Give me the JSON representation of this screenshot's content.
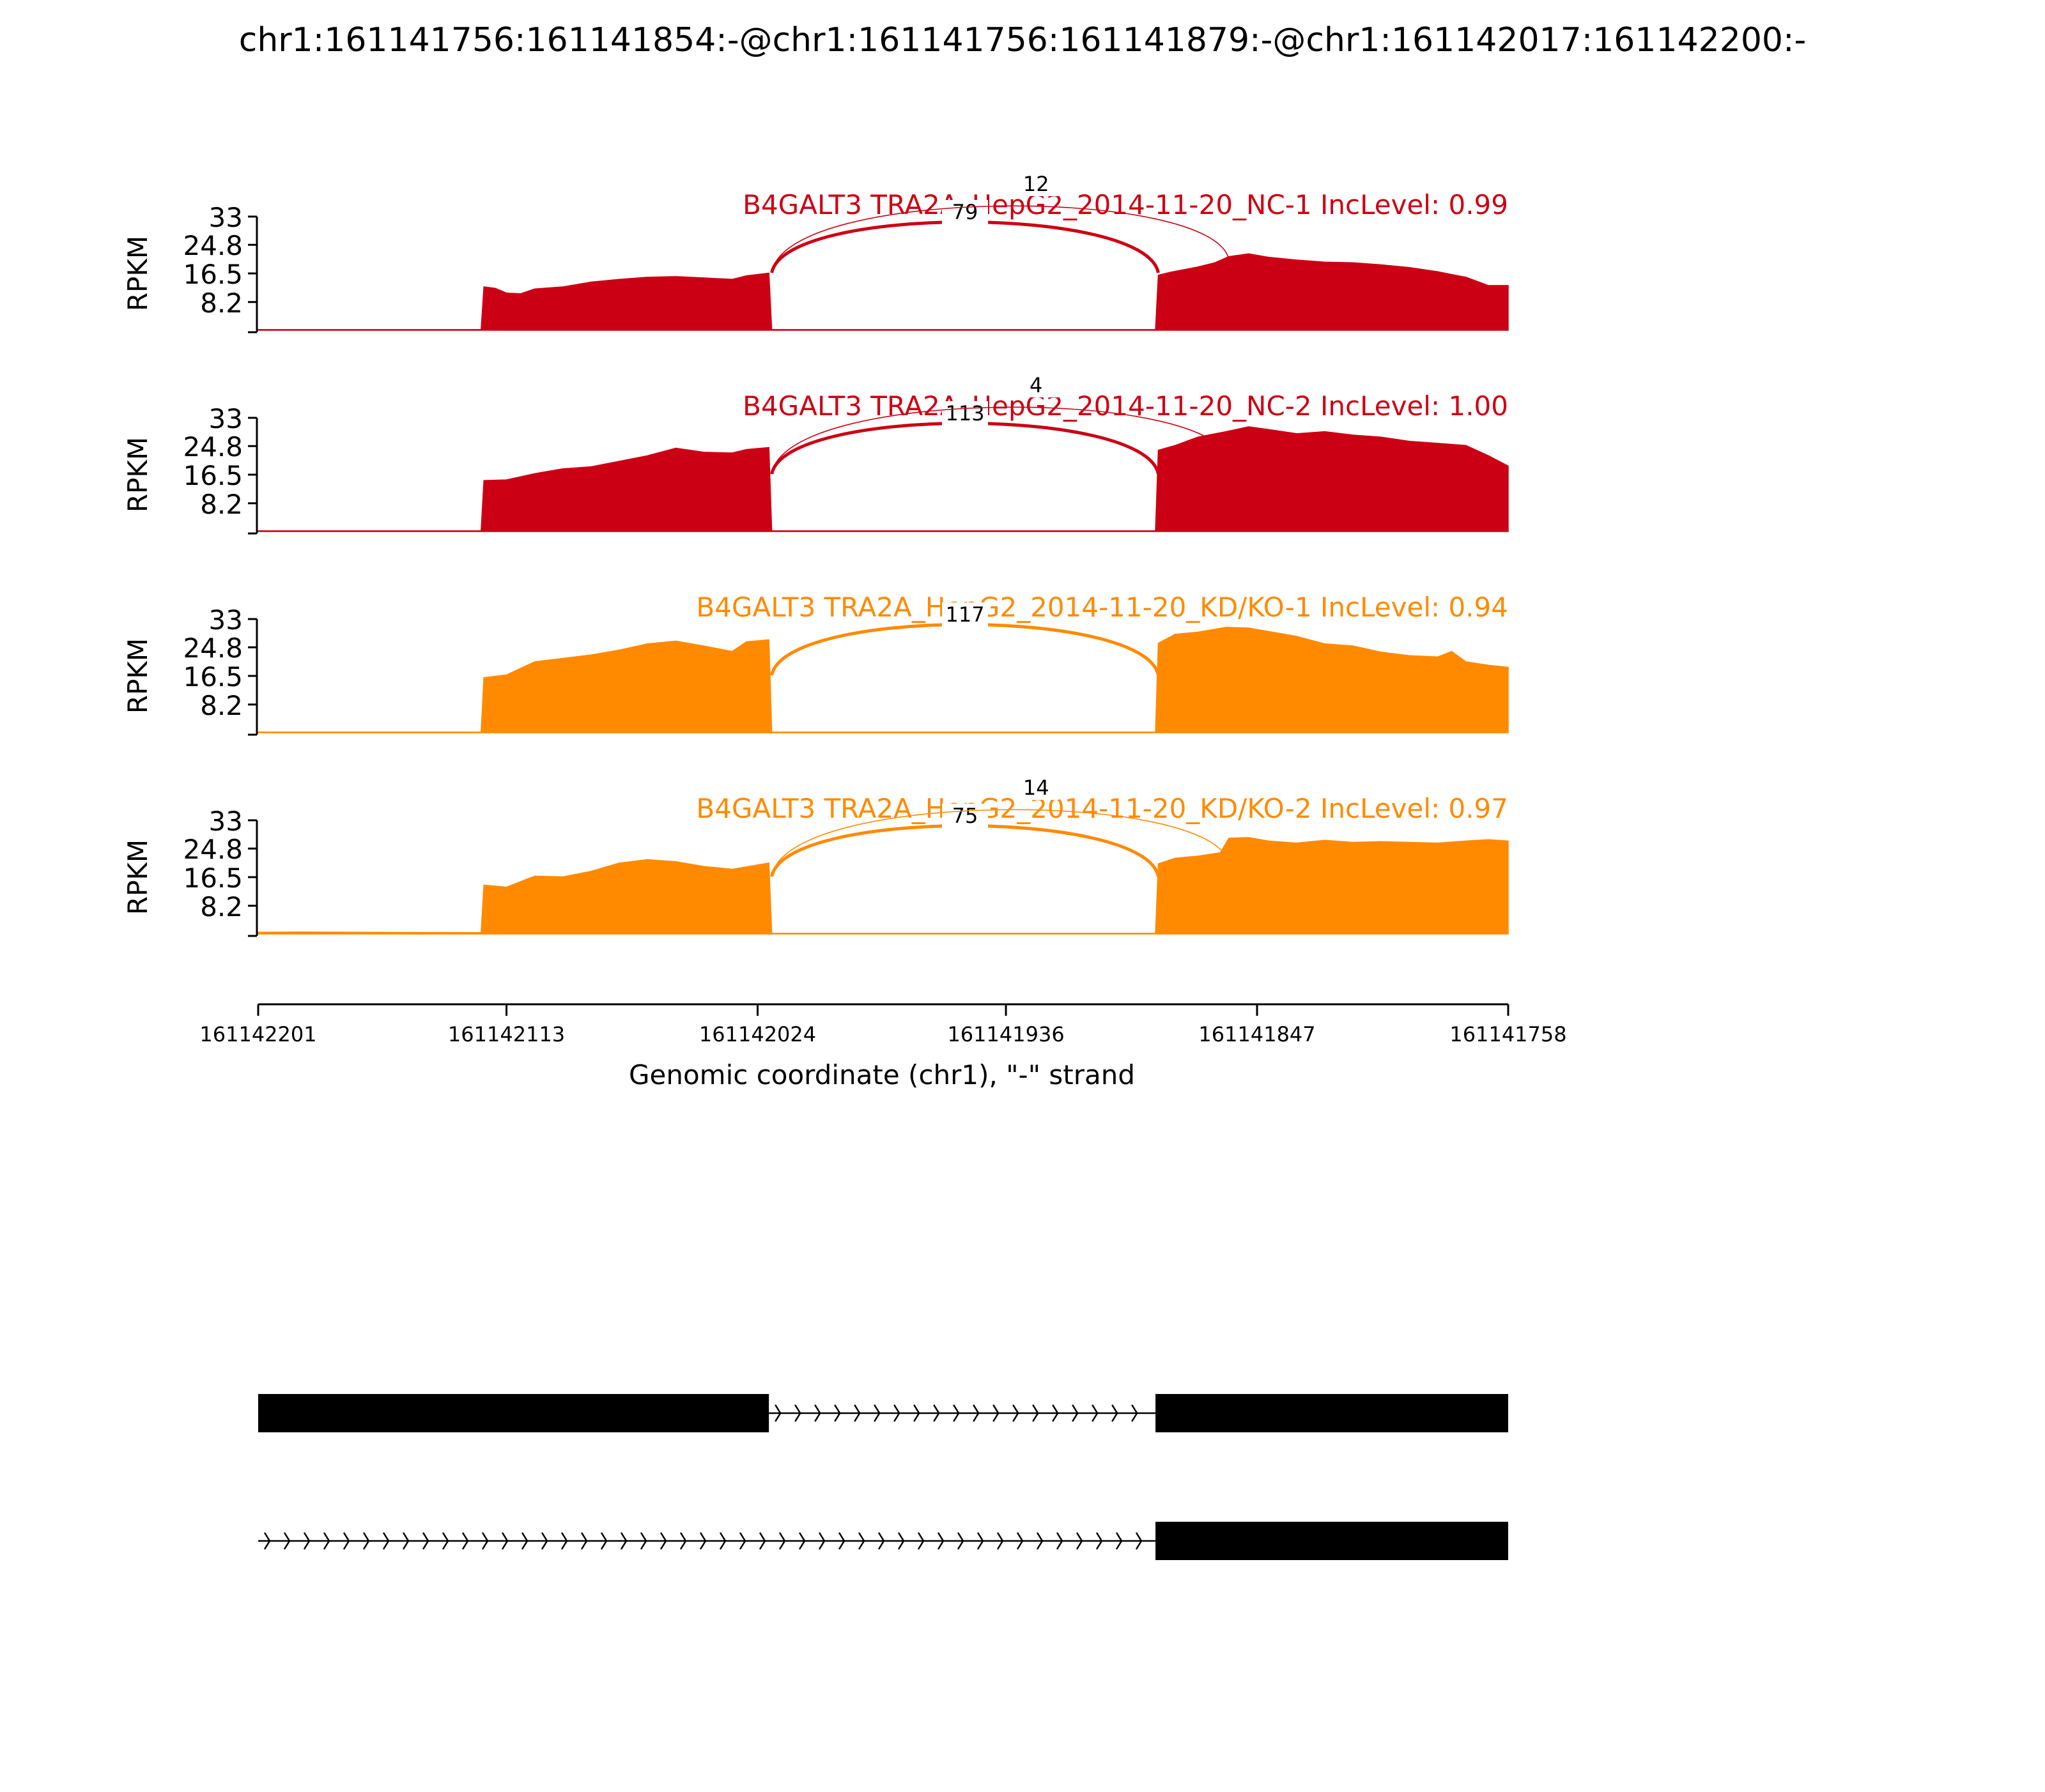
{
  "chart_data": {
    "type": "area",
    "title": "chr1:161141756:161141854:-@chr1:161141756:161141879:-@chr1:161142017:161142200:-",
    "xlabel": "Genomic coordinate (chr1), \"-\" strand",
    "ylabel": "RPKM",
    "x_range": [
      161142201,
      161141758
    ],
    "x_ticks": [
      "161142201",
      "161142113",
      "161142024",
      "161141936",
      "161141847",
      "161141758"
    ],
    "y_ticks": [
      "33",
      "24.8",
      "16.5",
      "8.2"
    ],
    "ylim": [
      0,
      33
    ],
    "colors": {
      "NC": "#cc0014",
      "KD": "#ff8a00",
      "exon": "#000000"
    },
    "tracks": [
      {
        "name": "B4GALT3 TRA2A_HepG2_2014-11-20_NC-1 IncLevel: 0.99",
        "color": "#cc0014",
        "coverage": [
          [
            161142201,
            0.2
          ],
          [
            161142122,
            0.2
          ],
          [
            161142121,
            12.6
          ],
          [
            161142117,
            12.2
          ],
          [
            161142113,
            10.8
          ],
          [
            161142108,
            10.6
          ],
          [
            161142103,
            12.0
          ],
          [
            161142093,
            12.6
          ],
          [
            161142083,
            14.0
          ],
          [
            161142073,
            14.8
          ],
          [
            161142063,
            15.4
          ],
          [
            161142053,
            15.6
          ],
          [
            161142043,
            15.2
          ],
          [
            161142033,
            14.8
          ],
          [
            161142028,
            15.8
          ],
          [
            161142020,
            16.6
          ],
          [
            161142019,
            0.2
          ],
          [
            161141883,
            0.2
          ],
          [
            161141882,
            16.0
          ],
          [
            161141878,
            16.8
          ],
          [
            161141868,
            18.4
          ],
          [
            161141862,
            19.6
          ],
          [
            161141857,
            21.4
          ],
          [
            161141850,
            22.2
          ],
          [
            161141843,
            21.2
          ],
          [
            161141833,
            20.4
          ],
          [
            161141823,
            19.8
          ],
          [
            161141813,
            19.6
          ],
          [
            161141803,
            19.0
          ],
          [
            161141793,
            18.2
          ],
          [
            161141783,
            17.0
          ],
          [
            161141773,
            15.4
          ],
          [
            161141765,
            13.0
          ],
          [
            161141758,
            13.0
          ]
        ],
        "junctions": [
          {
            "label": "79",
            "start": 161142019,
            "end": 161141882
          },
          {
            "label": "12",
            "start": 161142019,
            "end": 161141857
          }
        ]
      },
      {
        "name": "B4GALT3 TRA2A_HepG2_2014-11-20_NC-2 IncLevel: 1.00",
        "color": "#cc0014",
        "coverage": [
          [
            161142201,
            0.2
          ],
          [
            161142122,
            0.2
          ],
          [
            161142121,
            14.8
          ],
          [
            161142113,
            15.0
          ],
          [
            161142103,
            16.8
          ],
          [
            161142093,
            18.2
          ],
          [
            161142083,
            18.8
          ],
          [
            161142073,
            20.4
          ],
          [
            161142063,
            22.0
          ],
          [
            161142053,
            24.2
          ],
          [
            161142043,
            23.0
          ],
          [
            161142033,
            22.8
          ],
          [
            161142028,
            23.8
          ],
          [
            161142020,
            24.4
          ],
          [
            161142019,
            0.2
          ],
          [
            161141883,
            0.2
          ],
          [
            161141882,
            23.6
          ],
          [
            161141876,
            25.0
          ],
          [
            161141868,
            27.4
          ],
          [
            161141858,
            29.0
          ],
          [
            161141850,
            30.4
          ],
          [
            161141843,
            29.6
          ],
          [
            161141833,
            28.4
          ],
          [
            161141823,
            29.0
          ],
          [
            161141813,
            28.0
          ],
          [
            161141803,
            27.4
          ],
          [
            161141793,
            26.2
          ],
          [
            161141783,
            25.6
          ],
          [
            161141773,
            25.0
          ],
          [
            161141765,
            22.0
          ],
          [
            161141758,
            19.0
          ]
        ],
        "junctions": [
          {
            "label": "113",
            "start": 161142019,
            "end": 161141882
          },
          {
            "label": "4",
            "start": 161142019,
            "end": 161141857
          }
        ]
      },
      {
        "name": "B4GALT3 TRA2A_HepG2_2014-11-20_KD/KO-1 IncLevel: 0.94",
        "color": "#ff8a00",
        "coverage": [
          [
            161142201,
            0.2
          ],
          [
            161142122,
            0.2
          ],
          [
            161142121,
            16.0
          ],
          [
            161142113,
            16.8
          ],
          [
            161142103,
            20.6
          ],
          [
            161142093,
            21.6
          ],
          [
            161142083,
            22.6
          ],
          [
            161142073,
            24.0
          ],
          [
            161142063,
            25.8
          ],
          [
            161142053,
            26.6
          ],
          [
            161142043,
            25.2
          ],
          [
            161142033,
            23.6
          ],
          [
            161142028,
            26.4
          ],
          [
            161142020,
            27.0
          ],
          [
            161142019,
            0.2
          ],
          [
            161141883,
            0.2
          ],
          [
            161141882,
            26.0
          ],
          [
            161141876,
            28.6
          ],
          [
            161141868,
            29.2
          ],
          [
            161141858,
            30.6
          ],
          [
            161141850,
            30.4
          ],
          [
            161141843,
            29.4
          ],
          [
            161141833,
            28.0
          ],
          [
            161141823,
            25.8
          ],
          [
            161141813,
            25.2
          ],
          [
            161141803,
            23.4
          ],
          [
            161141793,
            22.4
          ],
          [
            161141783,
            22.0
          ],
          [
            161141778,
            23.6
          ],
          [
            161141773,
            20.6
          ],
          [
            161141765,
            19.6
          ],
          [
            161141758,
            19.0
          ]
        ],
        "junctions": [
          {
            "label": "117",
            "start": 161142019,
            "end": 161141882
          }
        ]
      },
      {
        "name": "B4GALT3 TRA2A_HepG2_2014-11-20_KD/KO-2 IncLevel: 0.97",
        "color": "#ff8a00",
        "coverage": [
          [
            161142201,
            0.5
          ],
          [
            161142185,
            0.6
          ],
          [
            161142165,
            0.5
          ],
          [
            161142122,
            0.4
          ],
          [
            161142121,
            14.2
          ],
          [
            161142113,
            13.6
          ],
          [
            161142103,
            16.8
          ],
          [
            161142093,
            16.6
          ],
          [
            161142083,
            18.2
          ],
          [
            161142073,
            20.6
          ],
          [
            161142063,
            21.6
          ],
          [
            161142053,
            21.0
          ],
          [
            161142043,
            19.6
          ],
          [
            161142033,
            18.8
          ],
          [
            161142020,
            20.6
          ],
          [
            161142019,
            0.2
          ],
          [
            161141883,
            0.2
          ],
          [
            161141882,
            20.4
          ],
          [
            161141876,
            22.0
          ],
          [
            161141868,
            22.6
          ],
          [
            161141860,
            23.6
          ],
          [
            161141857,
            27.8
          ],
          [
            161141850,
            28.0
          ],
          [
            161141843,
            27.0
          ],
          [
            161141833,
            26.4
          ],
          [
            161141823,
            27.2
          ],
          [
            161141813,
            26.6
          ],
          [
            161141803,
            26.8
          ],
          [
            161141793,
            26.6
          ],
          [
            161141783,
            26.4
          ],
          [
            161141773,
            27.0
          ],
          [
            161141765,
            27.4
          ],
          [
            161141758,
            27.0
          ]
        ],
        "junctions": [
          {
            "label": "75",
            "start": 161142019,
            "end": 161141882
          },
          {
            "label": "14",
            "start": 161142019,
            "end": 161141857
          }
        ]
      }
    ],
    "isoforms": [
      {
        "exons": [
          [
            161142201,
            161142020
          ],
          [
            161141883,
            161141758
          ]
        ],
        "intron": [
          161142020,
          161141883
        ]
      },
      {
        "exons": [
          [
            161141883,
            161141758
          ]
        ],
        "intron": [
          161142201,
          161141883
        ]
      }
    ]
  }
}
